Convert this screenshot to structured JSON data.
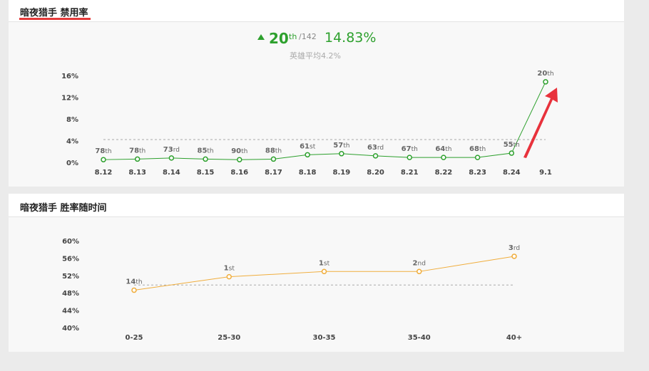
{
  "ban_panel": {
    "title": "暗夜猎手 禁用率",
    "rank_number": "20",
    "rank_suffix": "th",
    "rank_total": "/142",
    "ban_rate": "14.83%",
    "average_text": "英雄平均4.2%"
  },
  "winrate_panel": {
    "title": "暗夜猎手 胜率随时间"
  },
  "colors": {
    "ban_line": "#2da02d",
    "winrate_line": "#f0ad3c",
    "title_underline": "#e43a3a",
    "arrow_annotation": "#e8323c"
  },
  "chart_data": [
    {
      "type": "line",
      "x": [
        "8.12",
        "8.13",
        "8.14",
        "8.15",
        "8.16",
        "8.17",
        "8.18",
        "8.19",
        "8.20",
        "8.21",
        "8.22",
        "8.23",
        "8.24",
        "9.1"
      ],
      "values": [
        0.5,
        0.6,
        0.8,
        0.6,
        0.5,
        0.6,
        1.4,
        1.6,
        1.2,
        0.9,
        0.9,
        0.9,
        1.7,
        14.83
      ],
      "point_labels": [
        "78th",
        "78th",
        "73rd",
        "85th",
        "90th",
        "88th",
        "61st",
        "57th",
        "63rd",
        "67th",
        "64th",
        "68th",
        "55th",
        "20th"
      ],
      "yticks": [
        "0%",
        "4%",
        "8%",
        "12%",
        "16%"
      ],
      "ylim": [
        0,
        16
      ],
      "reference_line": 4.2,
      "title": "",
      "xlabel": "",
      "ylabel": "",
      "grid": false
    },
    {
      "type": "line",
      "x": [
        "0-25",
        "25-30",
        "30-35",
        "35-40",
        "40+"
      ],
      "values": [
        48.6,
        51.7,
        52.9,
        52.9,
        56.4
      ],
      "point_labels": [
        "14th",
        "1st",
        "1st",
        "2nd",
        "3rd"
      ],
      "yticks": [
        "40%",
        "44%",
        "48%",
        "52%",
        "56%",
        "60%"
      ],
      "ylim": [
        40,
        60
      ],
      "reference_line": 49.8,
      "title": "",
      "xlabel": "",
      "ylabel": "",
      "grid": false
    }
  ]
}
